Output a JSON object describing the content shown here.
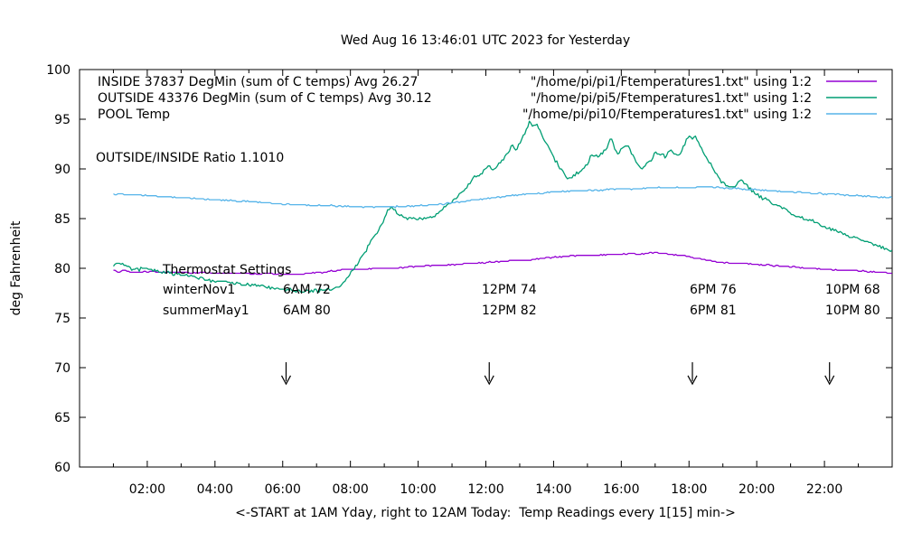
{
  "title": "Wed Aug 16 13:46:01 UTC 2023 for Yesterday",
  "annotations": {
    "ratio": "OUTSIDE/INSIDE Ratio 1.1010",
    "thermostat": {
      "heading": "Thermostat Settings",
      "rows": [
        {
          "label": "winterNov1",
          "settings": [
            "6AM 72",
            "12PM 74",
            "6PM 76",
            "10PM 68"
          ]
        },
        {
          "label": "summerMay1",
          "settings": [
            "6AM 80",
            "12PM 82",
            "6PM 81",
            "10PM 80"
          ]
        }
      ]
    }
  },
  "chart_data": {
    "type": "line",
    "title": "Wed Aug 16 13:46:01 UTC 2023 for Yesterday",
    "xlabel": "<-START at 1AM Yday, right to 12AM Today:  Temp Readings every 1[15] min->",
    "ylabel": "deg Fahrenheit",
    "xlim": [
      0,
      24
    ],
    "ylim": [
      60,
      100
    ],
    "grid": false,
    "legend_position": "top-inside",
    "x_ticks": [
      {
        "t": 2,
        "label": "02:00"
      },
      {
        "t": 4,
        "label": "04:00"
      },
      {
        "t": 6,
        "label": "06:00"
      },
      {
        "t": 8,
        "label": "08:00"
      },
      {
        "t": 10,
        "label": "10:00"
      },
      {
        "t": 12,
        "label": "12:00"
      },
      {
        "t": 14,
        "label": "14:00"
      },
      {
        "t": 16,
        "label": "16:00"
      },
      {
        "t": 18,
        "label": "18:00"
      },
      {
        "t": 20,
        "label": "20:00"
      },
      {
        "t": 22,
        "label": "22:00"
      }
    ],
    "x_minor_hours": [
      1,
      3,
      5,
      7,
      9,
      11,
      13,
      15,
      17,
      19,
      21,
      23
    ],
    "y_ticks": [
      60,
      65,
      70,
      75,
      80,
      85,
      90,
      95,
      100
    ],
    "arrows": {
      "hours": [
        6.1,
        12.1,
        18.1,
        22.15
      ],
      "top_F": 70.55,
      "tip_F": 68.35,
      "wing_F": 69.2
    },
    "legend": [
      {
        "label": "INSIDE 37837 DegMin (sum of C temps) Avg 26.27",
        "file": "\"/home/pi/pi1/Ftemperatures1.txt\" using 1:2",
        "color": "#9400d3"
      },
      {
        "label": "OUTSIDE 43376 DegMin (sum of C temps) Avg 30.12",
        "file": "\"/home/pi/pi5/Ftemperatures1.txt\" using 1:2",
        "color": "#009e73"
      },
      {
        "label": "POOL Temp",
        "file": "\"/home/pi/pi10/Ftemperatures1.txt\" using 1:2",
        "color": "#56b4e9"
      }
    ],
    "series": [
      {
        "name": "INSIDE",
        "color": "#9400d3",
        "noise": 0.05,
        "points": [
          [
            1.0,
            79.8
          ],
          [
            1.15,
            79.6
          ],
          [
            1.3,
            79.8
          ],
          [
            1.5,
            79.6
          ],
          [
            1.8,
            79.6
          ],
          [
            2.1,
            79.7
          ],
          [
            2.4,
            79.6
          ],
          [
            2.7,
            79.6
          ],
          [
            3.0,
            79.6
          ],
          [
            3.3,
            79.5
          ],
          [
            3.6,
            79.6
          ],
          [
            4.0,
            79.5
          ],
          [
            4.4,
            79.5
          ],
          [
            4.8,
            79.5
          ],
          [
            5.2,
            79.4
          ],
          [
            5.6,
            79.5
          ],
          [
            6.0,
            79.4
          ],
          [
            6.4,
            79.4
          ],
          [
            6.8,
            79.5
          ],
          [
            7.2,
            79.6
          ],
          [
            7.6,
            79.8
          ],
          [
            8.0,
            79.9
          ],
          [
            8.4,
            79.9
          ],
          [
            8.8,
            80.0
          ],
          [
            9.2,
            80.0
          ],
          [
            9.6,
            80.1
          ],
          [
            10.0,
            80.2
          ],
          [
            10.4,
            80.3
          ],
          [
            10.8,
            80.3
          ],
          [
            11.2,
            80.4
          ],
          [
            11.6,
            80.5
          ],
          [
            12.0,
            80.6
          ],
          [
            12.4,
            80.7
          ],
          [
            12.8,
            80.8
          ],
          [
            13.2,
            80.8
          ],
          [
            13.6,
            81.0
          ],
          [
            14.0,
            81.1
          ],
          [
            14.4,
            81.2
          ],
          [
            14.8,
            81.3
          ],
          [
            15.2,
            81.3
          ],
          [
            15.6,
            81.4
          ],
          [
            16.0,
            81.4
          ],
          [
            16.3,
            81.5
          ],
          [
            16.6,
            81.4
          ],
          [
            16.9,
            81.6
          ],
          [
            17.2,
            81.5
          ],
          [
            17.5,
            81.4
          ],
          [
            17.8,
            81.3
          ],
          [
            18.1,
            81.1
          ],
          [
            18.4,
            80.9
          ],
          [
            18.7,
            80.7
          ],
          [
            19.0,
            80.6
          ],
          [
            19.3,
            80.5
          ],
          [
            19.6,
            80.5
          ],
          [
            20.0,
            80.4
          ],
          [
            20.4,
            80.3
          ],
          [
            20.8,
            80.2
          ],
          [
            21.2,
            80.1
          ],
          [
            21.6,
            80.0
          ],
          [
            22.0,
            79.9
          ],
          [
            22.4,
            79.8
          ],
          [
            22.8,
            79.8
          ],
          [
            23.2,
            79.7
          ],
          [
            23.6,
            79.6
          ],
          [
            24.0,
            79.5
          ]
        ]
      },
      {
        "name": "OUTSIDE",
        "color": "#009e73",
        "noise": 0.16,
        "points": [
          [
            1.0,
            80.2
          ],
          [
            1.1,
            80.5
          ],
          [
            1.2,
            80.6
          ],
          [
            1.35,
            80.2
          ],
          [
            1.5,
            80.0
          ],
          [
            1.75,
            79.9
          ],
          [
            2.0,
            79.9
          ],
          [
            2.25,
            79.8
          ],
          [
            2.5,
            79.6
          ],
          [
            2.75,
            79.5
          ],
          [
            3.0,
            79.4
          ],
          [
            3.25,
            79.2
          ],
          [
            3.5,
            79.0
          ],
          [
            3.75,
            78.9
          ],
          [
            4.0,
            78.7
          ],
          [
            4.25,
            78.6
          ],
          [
            4.5,
            78.5
          ],
          [
            4.75,
            78.4
          ],
          [
            5.0,
            78.3
          ],
          [
            5.25,
            78.2
          ],
          [
            5.5,
            78.1
          ],
          [
            5.75,
            78.0
          ],
          [
            6.0,
            77.9
          ],
          [
            6.3,
            77.8
          ],
          [
            6.6,
            77.7
          ],
          [
            6.9,
            77.7
          ],
          [
            7.2,
            77.8
          ],
          [
            7.5,
            78.0
          ],
          [
            7.7,
            78.3
          ],
          [
            7.9,
            79.0
          ],
          [
            8.05,
            79.7
          ],
          [
            8.2,
            80.4
          ],
          [
            8.4,
            81.5
          ],
          [
            8.6,
            82.6
          ],
          [
            8.8,
            83.7
          ],
          [
            9.0,
            85.0
          ],
          [
            9.1,
            85.7
          ],
          [
            9.2,
            86.2
          ],
          [
            9.3,
            86.0
          ],
          [
            9.4,
            85.5
          ],
          [
            9.55,
            85.2
          ],
          [
            9.7,
            85.0
          ],
          [
            9.9,
            85.0
          ],
          [
            10.1,
            85.0
          ],
          [
            10.3,
            85.1
          ],
          [
            10.5,
            85.3
          ],
          [
            10.7,
            85.9
          ],
          [
            10.9,
            86.5
          ],
          [
            11.1,
            87.0
          ],
          [
            11.3,
            87.7
          ],
          [
            11.5,
            88.5
          ],
          [
            11.65,
            89.2
          ],
          [
            11.8,
            89.3
          ],
          [
            11.9,
            89.6
          ],
          [
            12.0,
            90.1
          ],
          [
            12.1,
            90.3
          ],
          [
            12.2,
            89.9
          ],
          [
            12.3,
            90.1
          ],
          [
            12.45,
            90.8
          ],
          [
            12.6,
            91.3
          ],
          [
            12.7,
            91.9
          ],
          [
            12.8,
            92.4
          ],
          [
            12.9,
            91.9
          ],
          [
            13.0,
            92.6
          ],
          [
            13.1,
            93.3
          ],
          [
            13.2,
            93.9
          ],
          [
            13.3,
            94.8
          ],
          [
            13.4,
            94.2
          ],
          [
            13.5,
            94.5
          ],
          [
            13.6,
            93.7
          ],
          [
            13.7,
            93.1
          ],
          [
            13.8,
            92.5
          ],
          [
            13.9,
            91.9
          ],
          [
            14.0,
            91.2
          ],
          [
            14.1,
            90.6
          ],
          [
            14.2,
            90.0
          ],
          [
            14.3,
            89.5
          ],
          [
            14.4,
            89.2
          ],
          [
            14.5,
            89.1
          ],
          [
            14.6,
            89.3
          ],
          [
            14.7,
            89.6
          ],
          [
            14.8,
            89.9
          ],
          [
            14.9,
            90.1
          ],
          [
            15.0,
            90.4
          ],
          [
            15.1,
            91.3
          ],
          [
            15.2,
            91.5
          ],
          [
            15.3,
            91.2
          ],
          [
            15.4,
            91.5
          ],
          [
            15.5,
            91.8
          ],
          [
            15.6,
            92.2
          ],
          [
            15.7,
            93.3
          ],
          [
            15.8,
            92.1
          ],
          [
            15.9,
            91.4
          ],
          [
            16.0,
            91.9
          ],
          [
            16.1,
            92.3
          ],
          [
            16.2,
            92.5
          ],
          [
            16.3,
            91.5
          ],
          [
            16.4,
            91.0
          ],
          [
            16.5,
            90.5
          ],
          [
            16.6,
            90.1
          ],
          [
            16.7,
            90.3
          ],
          [
            16.8,
            90.6
          ],
          [
            16.9,
            91.0
          ],
          [
            17.0,
            91.7
          ],
          [
            17.1,
            91.3
          ],
          [
            17.2,
            91.5
          ],
          [
            17.3,
            91.2
          ],
          [
            17.4,
            91.6
          ],
          [
            17.5,
            91.8
          ],
          [
            17.6,
            91.5
          ],
          [
            17.7,
            91.3
          ],
          [
            17.8,
            92.0
          ],
          [
            17.9,
            92.7
          ],
          [
            18.0,
            93.2
          ],
          [
            18.1,
            93.0
          ],
          [
            18.2,
            93.2
          ],
          [
            18.3,
            92.6
          ],
          [
            18.4,
            91.9
          ],
          [
            18.5,
            91.3
          ],
          [
            18.6,
            90.7
          ],
          [
            18.7,
            90.1
          ],
          [
            18.8,
            89.5
          ],
          [
            18.9,
            89.0
          ],
          [
            19.0,
            88.6
          ],
          [
            19.1,
            88.3
          ],
          [
            19.2,
            88.1
          ],
          [
            19.3,
            88.2
          ],
          [
            19.4,
            88.4
          ],
          [
            19.5,
            88.8
          ],
          [
            19.6,
            88.8
          ],
          [
            19.7,
            88.4
          ],
          [
            19.8,
            88.0
          ],
          [
            19.9,
            87.7
          ],
          [
            20.0,
            87.4
          ],
          [
            20.2,
            87.0
          ],
          [
            20.4,
            86.7
          ],
          [
            20.6,
            86.3
          ],
          [
            20.8,
            86.0
          ],
          [
            21.0,
            85.6
          ],
          [
            21.2,
            85.3
          ],
          [
            21.4,
            85.0
          ],
          [
            21.6,
            84.8
          ],
          [
            21.8,
            84.5
          ],
          [
            22.0,
            84.2
          ],
          [
            22.2,
            83.9
          ],
          [
            22.4,
            83.7
          ],
          [
            22.6,
            83.4
          ],
          [
            22.8,
            83.2
          ],
          [
            23.0,
            83.0
          ],
          [
            23.2,
            82.7
          ],
          [
            23.4,
            82.5
          ],
          [
            23.6,
            82.3
          ],
          [
            23.8,
            82.0
          ],
          [
            24.0,
            81.8
          ]
        ]
      },
      {
        "name": "POOL",
        "color": "#56b4e9",
        "noise": 0.06,
        "points": [
          [
            1.0,
            87.5
          ],
          [
            1.5,
            87.4
          ],
          [
            2.0,
            87.3
          ],
          [
            2.5,
            87.2
          ],
          [
            3.0,
            87.1
          ],
          [
            3.5,
            87.0
          ],
          [
            4.0,
            86.9
          ],
          [
            4.5,
            86.8
          ],
          [
            5.0,
            86.7
          ],
          [
            5.5,
            86.6
          ],
          [
            6.0,
            86.5
          ],
          [
            6.5,
            86.4
          ],
          [
            7.0,
            86.3
          ],
          [
            7.5,
            86.3
          ],
          [
            8.0,
            86.2
          ],
          [
            8.5,
            86.2
          ],
          [
            9.0,
            86.2
          ],
          [
            9.5,
            86.2
          ],
          [
            10.0,
            86.3
          ],
          [
            10.5,
            86.4
          ],
          [
            11.0,
            86.6
          ],
          [
            11.5,
            86.8
          ],
          [
            12.0,
            87.0
          ],
          [
            12.5,
            87.2
          ],
          [
            13.0,
            87.4
          ],
          [
            13.5,
            87.5
          ],
          [
            14.0,
            87.7
          ],
          [
            14.5,
            87.8
          ],
          [
            15.0,
            87.8
          ],
          [
            15.5,
            87.9
          ],
          [
            16.0,
            88.0
          ],
          [
            16.5,
            88.0
          ],
          [
            17.0,
            88.1
          ],
          [
            17.5,
            88.1
          ],
          [
            18.0,
            88.1
          ],
          [
            18.5,
            88.2
          ],
          [
            19.0,
            88.1
          ],
          [
            19.5,
            88.0
          ],
          [
            20.0,
            87.9
          ],
          [
            20.5,
            87.8
          ],
          [
            21.0,
            87.7
          ],
          [
            21.5,
            87.6
          ],
          [
            22.0,
            87.5
          ],
          [
            22.5,
            87.4
          ],
          [
            23.0,
            87.3
          ],
          [
            23.5,
            87.2
          ],
          [
            24.0,
            87.1
          ]
        ]
      }
    ]
  }
}
